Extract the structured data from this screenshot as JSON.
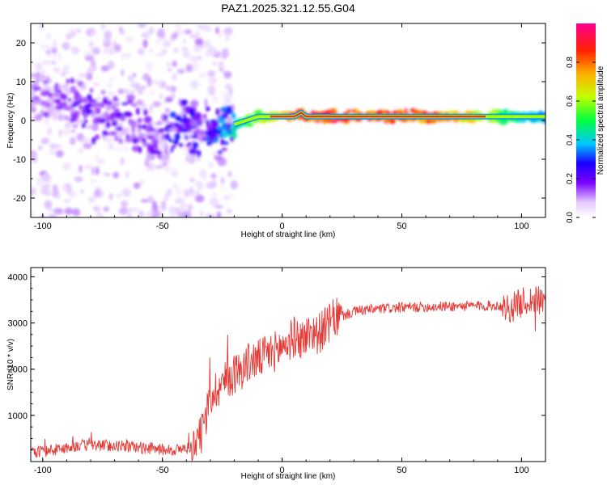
{
  "title": "PAZ1.2025.321.12.55.G04",
  "chart_data": [
    {
      "type": "heatmap",
      "xlabel": "Height of straight line (km)",
      "ylabel": "Frequency (Hz)",
      "xlim": [
        -105,
        110
      ],
      "ylim": [
        -25,
        25
      ],
      "xticks": [
        -100,
        -50,
        0,
        50,
        100
      ],
      "yticks": [
        -20,
        -10,
        0,
        10,
        20
      ],
      "colorbar": {
        "label": "Normalized spectral amplitude",
        "range": [
          0,
          1
        ],
        "ticks": [
          0.0,
          0.2,
          0.4,
          0.6,
          0.8
        ]
      },
      "ridge": {
        "x": [
          -100,
          -90,
          -80,
          -70,
          -60,
          -50,
          -45,
          -40,
          -35,
          -30,
          -25,
          -20,
          -15,
          -10,
          -5,
          0,
          5,
          8,
          10,
          20,
          30,
          40,
          50,
          60,
          70,
          80,
          90,
          100,
          110
        ],
        "freq": [
          6,
          4,
          2,
          1,
          -2,
          -6,
          -1,
          -1,
          -3,
          -4,
          -2,
          -1,
          0,
          1,
          1,
          1,
          1,
          2,
          1,
          1,
          1,
          1,
          1,
          1,
          1,
          1,
          1,
          1,
          1
        ],
        "amplitude": [
          0.15,
          0.18,
          0.22,
          0.2,
          0.2,
          0.18,
          0.3,
          0.3,
          0.3,
          0.3,
          0.35,
          0.45,
          0.55,
          0.6,
          0.65,
          0.75,
          0.85,
          0.9,
          0.9,
          0.92,
          0.92,
          0.9,
          0.9,
          0.85,
          0.8,
          0.7,
          0.55,
          0.45,
          0.4
        ]
      }
    },
    {
      "type": "line",
      "xlabel": "Height of straight line (km)",
      "ylabel": "SNR (10 * v/v)",
      "xlim": [
        -105,
        110
      ],
      "ylim": [
        0,
        4200
      ],
      "xticks": [
        -100,
        -50,
        0,
        50,
        100
      ],
      "yticks": [
        1000,
        2000,
        3000,
        4000
      ],
      "series": [
        {
          "name": "SNR",
          "color": "#e53935",
          "x": [
            -105,
            -95,
            -85,
            -75,
            -65,
            -55,
            -45,
            -40,
            -35,
            -32,
            -30,
            -27,
            -25,
            -22,
            -20,
            -17,
            -15,
            -12,
            -10,
            -7,
            -5,
            -2,
            0,
            3,
            5,
            8,
            10,
            12,
            15,
            18,
            20,
            22,
            25,
            28,
            30,
            35,
            40,
            45,
            50,
            55,
            60,
            70,
            80,
            90,
            95,
            100,
            105,
            110
          ],
          "y": [
            200,
            250,
            350,
            350,
            330,
            280,
            250,
            280,
            400,
            900,
            1400,
            1600,
            1700,
            1800,
            1900,
            2000,
            2100,
            2200,
            2200,
            2300,
            2350,
            2400,
            2500,
            2600,
            2700,
            2650,
            2700,
            2850,
            2750,
            2900,
            3000,
            3100,
            3150,
            3200,
            3250,
            3280,
            3300,
            3320,
            3330,
            3340,
            3350,
            3360,
            3370,
            3380,
            3300,
            3450,
            3500,
            3450
          ]
        }
      ]
    }
  ]
}
